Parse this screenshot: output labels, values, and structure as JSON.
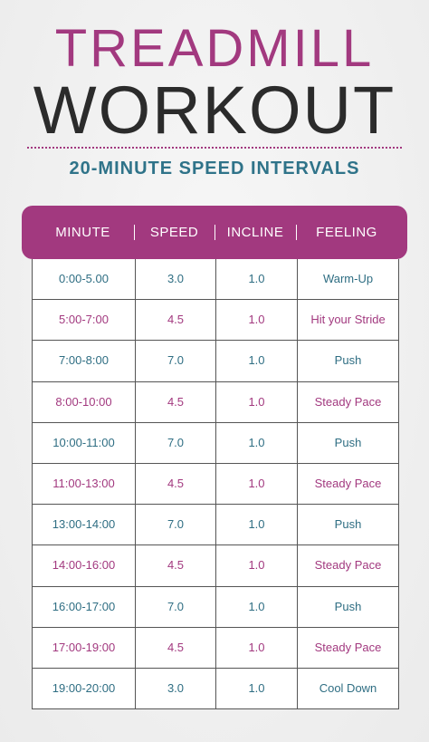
{
  "header": {
    "title": "TREADMILL",
    "title2": "WORKOUT",
    "subtitle": "20-MINUTE SPEED INTERVALS"
  },
  "table": {
    "header": [
      "MINUTE",
      "SPEED",
      "INCLINE",
      "FEELING"
    ],
    "rows": [
      [
        "0:00-5.00",
        "3.0",
        "1.0",
        "Warm-Up"
      ],
      [
        "5:00-7:00",
        "4.5",
        "1.0",
        "Hit your Stride"
      ],
      [
        "7:00-8:00",
        "7.0",
        "1.0",
        "Push"
      ],
      [
        "8:00-10:00",
        "4.5",
        "1.0",
        "Steady Pace"
      ],
      [
        "10:00-11:00",
        "7.0",
        "1.0",
        "Push"
      ],
      [
        "11:00-13:00",
        "4.5",
        "1.0",
        "Steady Pace"
      ],
      [
        "13:00-14:00",
        "7.0",
        "1.0",
        "Push"
      ],
      [
        "14:00-16:00",
        "4.5",
        "1.0",
        "Steady Pace"
      ],
      [
        "16:00-17:00",
        "7.0",
        "1.0",
        "Push"
      ],
      [
        "17:00-19:00",
        "4.5",
        "1.0",
        "Steady Pace"
      ],
      [
        "19:00-20:00",
        "3.0",
        "1.0",
        "Cool Down"
      ]
    ]
  }
}
